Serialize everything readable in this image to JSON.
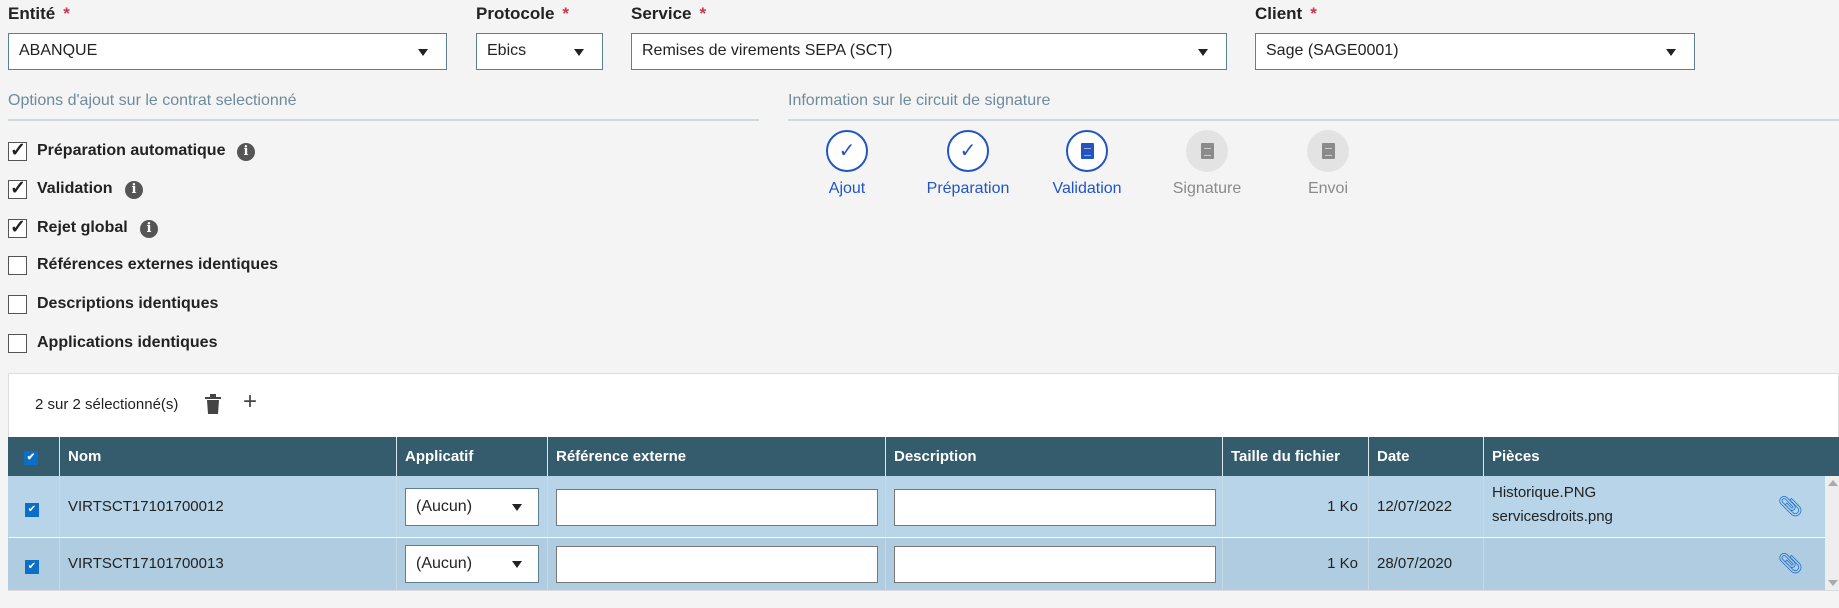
{
  "fields": {
    "entite": {
      "label": "Entité",
      "value": "ABANQUE"
    },
    "protocole": {
      "label": "Protocole",
      "value": "Ebics"
    },
    "service": {
      "label": "Service",
      "value": "Remises de virements SEPA (SCT)"
    },
    "client": {
      "label": "Client",
      "value": "Sage (SAGE0001)"
    },
    "required_mark": "*"
  },
  "options": {
    "title": "Options d'ajout sur le contrat selectionné",
    "items": [
      {
        "label": "Préparation automatique",
        "checked": true,
        "info": true
      },
      {
        "label": "Validation",
        "checked": true,
        "info": true
      },
      {
        "label": "Rejet global",
        "checked": true,
        "info": true
      },
      {
        "label": "Références externes identiques",
        "checked": false
      },
      {
        "label": "Descriptions identiques",
        "checked": false
      },
      {
        "label": "Applications identiques",
        "checked": false
      }
    ],
    "info_glyph": "i"
  },
  "circuit": {
    "title": "Information sur le circuit de signature",
    "steps": [
      {
        "label": "Ajout",
        "state": "done",
        "icon": "check-icon"
      },
      {
        "label": "Préparation",
        "state": "done",
        "icon": "check-icon"
      },
      {
        "label": "Validation",
        "state": "current",
        "icon": "document-icon"
      },
      {
        "label": "Signature",
        "state": "pending",
        "icon": "document-icon"
      },
      {
        "label": "Envoi",
        "state": "pending",
        "icon": "document-icon"
      }
    ],
    "check_glyph": "✓"
  },
  "table": {
    "selection_text": "2 sur 2 sélectionné(s)",
    "columns": [
      "Nom",
      "Applicatif",
      "Référence externe",
      "Description",
      "Taille du fichier",
      "Date",
      "Pièces"
    ],
    "rows": [
      {
        "checked": true,
        "nom": "VIRTSCT17101700012",
        "applicatif": "(Aucun)",
        "reference": "",
        "description": "",
        "taille": "1 Ko",
        "date": "12/07/2022",
        "pieces": [
          "Historique.PNG",
          "servicesdroits.png"
        ]
      },
      {
        "checked": true,
        "nom": "VIRTSCT17101700013",
        "applicatif": "(Aucun)",
        "reference": "",
        "description": "",
        "taille": "1 Ko",
        "date": "28/07/2020",
        "pieces": []
      }
    ],
    "check_glyph": "✔",
    "colors": {
      "header": "#345c6c",
      "row1": "#b7d4e8",
      "row2": "#afcce0",
      "accent": "#2255c4"
    }
  }
}
